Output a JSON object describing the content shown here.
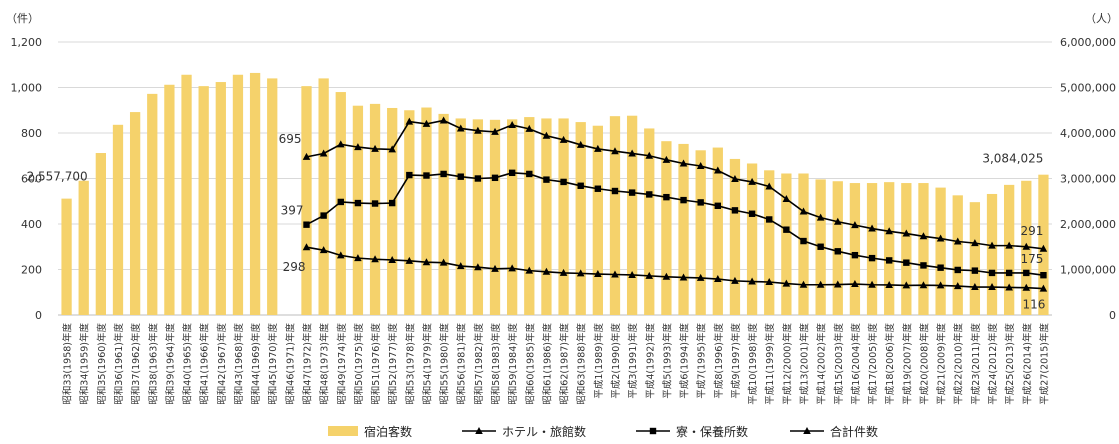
{
  "chart_data": {
    "type": "bar",
    "categories": [
      "昭和33(1958)年度",
      "昭和34(1959)年度",
      "昭和35(1960)年度",
      "昭和36(1961)年度",
      "昭和37(1962)年度",
      "昭和38(1963)年度",
      "昭和39(1964)年度",
      "昭和40(1965)年度",
      "昭和41(1966)年度",
      "昭和42(1967)年度",
      "昭和43(1968)年度",
      "昭和44(1969)年度",
      "昭和45(1970)年度",
      "昭和46(1971)年度",
      "昭和47(1972)年度",
      "昭和48(1973)年度",
      "昭和49(1974)年度",
      "昭和50(1975)年度",
      "昭和51(1976)年度",
      "昭和52(1977)年度",
      "昭和53(1978)年度",
      "昭和54(1979)年度",
      "昭和55(1980)年度",
      "昭和56(1981)年度",
      "昭和57(1982)年度",
      "昭和58(1983)年度",
      "昭和59(1984)年度",
      "昭和60(1985)年度",
      "昭和61(1986)年度",
      "昭和62(1987)年度",
      "昭和63(1988)年度",
      "平成1(1989)年度",
      "平成2(1990)年度",
      "平成3(1991)年度",
      "平成4(1992)年度",
      "平成5(1993)年度",
      "平成6(1994)年度",
      "平成7(1995)年度",
      "平成8(1996)年度",
      "平成9(1997)年度",
      "平成10(1998)年度",
      "平成11(1999)年度",
      "平成12(2000)年度",
      "平成13(2001)年度",
      "平成14(2002)年度",
      "平成15(2003)年度",
      "平成16(2004)年度",
      "平成17(2005)年度",
      "平成18(2006)年度",
      "平成19(2007)年度",
      "平成20(2008)年度",
      "平成21(2009)年度",
      "平成22(2010)年度",
      "平成23(2011)年度",
      "平成24(2012)年度",
      "平成25(2013)年度",
      "平成26(2014)年度",
      "平成27(2015)年度"
    ],
    "series": [
      {
        "name": "宿泊客数",
        "kind": "bar",
        "axis": "right",
        "color": "#f5d26b",
        "values": [
          2557700,
          2950000,
          3560000,
          4180000,
          4460000,
          4860000,
          5060000,
          5280000,
          5030000,
          5120000,
          5280000,
          5320000,
          5200000,
          null,
          5030000,
          5200000,
          4900000,
          4600000,
          4640000,
          4550000,
          4500000,
          4560000,
          4420000,
          4320000,
          4300000,
          4290000,
          4300000,
          4350000,
          4320000,
          4320000,
          4240000,
          4160000,
          4370000,
          4380000,
          4100000,
          3820000,
          3760000,
          3620000,
          3680000,
          3430000,
          3330000,
          3180000,
          3110000,
          3110000,
          2980000,
          2940000,
          2900000,
          2900000,
          2920000,
          2900000,
          2900000,
          2800000,
          2630000,
          2480000,
          2660000,
          2860000,
          2950000,
          3084025
        ]
      },
      {
        "name": "ホテル・旅館数",
        "kind": "line",
        "axis": "left",
        "marker": "triangle",
        "color": "#000000",
        "values": [
          null,
          null,
          null,
          null,
          null,
          null,
          null,
          null,
          null,
          null,
          null,
          null,
          null,
          null,
          298,
          285,
          262,
          250,
          245,
          242,
          238,
          232,
          230,
          215,
          210,
          203,
          205,
          195,
          190,
          185,
          183,
          180,
          178,
          176,
          172,
          168,
          165,
          163,
          158,
          150,
          147,
          145,
          138,
          133,
          133,
          134,
          136,
          133,
          132,
          130,
          131,
          130,
          127,
          123,
          123,
          121,
          120,
          116
        ]
      },
      {
        "name": "寮・保養所数",
        "kind": "line",
        "axis": "left",
        "marker": "square",
        "color": "#000000",
        "values": [
          null,
          null,
          null,
          null,
          null,
          null,
          null,
          null,
          null,
          null,
          null,
          null,
          null,
          null,
          397,
          437,
          497,
          492,
          490,
          492,
          615,
          613,
          620,
          608,
          600,
          603,
          625,
          620,
          595,
          585,
          568,
          555,
          545,
          538,
          530,
          518,
          505,
          495,
          480,
          460,
          445,
          420,
          375,
          325,
          300,
          280,
          263,
          250,
          240,
          230,
          218,
          208,
          198,
          195,
          185,
          185,
          185,
          175
        ]
      },
      {
        "name": "合計件数",
        "kind": "line",
        "axis": "left",
        "marker": "triangle",
        "color": "#000000",
        "values": [
          null,
          null,
          null,
          null,
          null,
          null,
          null,
          null,
          null,
          null,
          null,
          null,
          null,
          null,
          695,
          710,
          750,
          738,
          730,
          728,
          850,
          840,
          855,
          820,
          810,
          805,
          835,
          818,
          788,
          770,
          748,
          730,
          720,
          710,
          700,
          682,
          666,
          655,
          635,
          598,
          585,
          565,
          510,
          455,
          428,
          410,
          395,
          380,
          368,
          358,
          346,
          336,
          323,
          316,
          305,
          305,
          300,
          291
        ]
      }
    ],
    "left_axis": {
      "unit": "（件）",
      "ylim": [
        0,
        1200
      ],
      "ticks": [
        "0",
        "200",
        "400",
        "600",
        "800",
        "1,000",
        "1,200"
      ]
    },
    "right_axis": {
      "unit": "（人）",
      "ylim": [
        0,
        6000000
      ],
      "ticks": [
        "0",
        "1,000,000",
        "2,000,000",
        "3,000,000",
        "4,000,000",
        "5,000,000",
        "6,000,000"
      ]
    },
    "annotations": [
      {
        "text": "2,557,700",
        "series": "宿泊客数",
        "index": 0
      },
      {
        "text": "3,084,025",
        "series": "宿泊客数",
        "index": 57
      },
      {
        "text": "695",
        "series": "合計件数",
        "index": 14
      },
      {
        "text": "397",
        "series": "寮・保養所数",
        "index": 14
      },
      {
        "text": "298",
        "series": "ホテル・旅館数",
        "index": 14
      },
      {
        "text": "291",
        "series": "合計件数",
        "index": 57
      },
      {
        "text": "175",
        "series": "寮・保養所数",
        "index": 57
      },
      {
        "text": "116",
        "series": "ホテル・旅館数",
        "index": 57
      }
    ],
    "legend": [
      "宿泊客数",
      "ホテル・旅館数",
      "寮・保養所数",
      "合計件数"
    ],
    "legend_position": "bottom",
    "grid": true
  }
}
